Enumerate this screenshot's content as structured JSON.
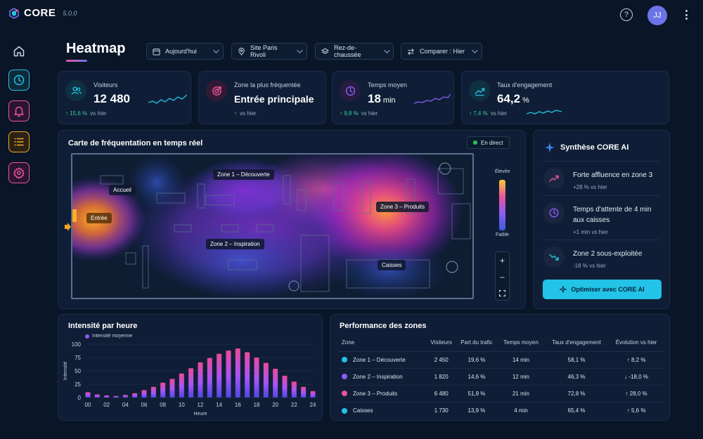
{
  "app": {
    "name": "CORE",
    "version": "5.0.0",
    "avatar_initials": "JJ"
  },
  "page": {
    "title": "Heatmap"
  },
  "filters": {
    "date": "Aujourd'hui",
    "site": "Site Paris Rivoli",
    "floor": "Rez-de-chaussée",
    "compare": "Comparer : Hier"
  },
  "kpis": [
    {
      "label": "Visiteurs",
      "value": "12 480",
      "unit": "",
      "delta": "15,6 %",
      "delta_suffix": "vs hier",
      "icon": "users-icon",
      "color": "#22c3e6"
    },
    {
      "label": "Zone la plus fréquentée",
      "value": "Entrée principale",
      "unit": "",
      "delta": "",
      "delta_suffix": "vs hier",
      "icon": "target-icon",
      "color": "#e8559a"
    },
    {
      "label": "Temps moyen",
      "value": "18",
      "unit": "min",
      "delta": "9,8 %",
      "delta_suffix": "vs hier",
      "icon": "clock-icon",
      "color": "#8b5cf6"
    },
    {
      "label": "Taux d'engagement",
      "value": "64,2",
      "unit": "%",
      "delta": "7,4 %",
      "delta_suffix": "vs hier",
      "icon": "trend-icon",
      "color": "#22c3e6"
    }
  ],
  "map": {
    "title": "Carte de fréquentation en temps réel",
    "live_label": "En direct",
    "zones": {
      "entrance": "Entrée",
      "reception": "Accueil",
      "zone1": "Zone 1 – Découverte",
      "zone2": "Zone 2 – Inspiration",
      "zone3": "Zone 3 – Produits",
      "checkout": "Caisses"
    },
    "legend_high": "Élevée",
    "legend_low": "Faible",
    "zoom_in": "+",
    "zoom_out": "−"
  },
  "ai": {
    "title": "Synthèse CORE AI",
    "items": [
      {
        "text": "Forte affluence en zone 3",
        "sub": "+28 % vs hier",
        "icon": "trend-up-icon",
        "color": "#e8559a"
      },
      {
        "text": "Temps d'attente de 4 min aux caisses",
        "sub": "+1 min vs hier",
        "icon": "clock-icon",
        "color": "#8b5cf6"
      },
      {
        "text": "Zone 2 sous-exploitée",
        "sub": "-18 % vs hier",
        "icon": "trend-down-icon",
        "color": "#22c3e6"
      }
    ],
    "button": "Optimiser avec CORE AI"
  },
  "hourly": {
    "title": "Intensité par heure",
    "legend": "Intensité moyenne"
  },
  "chart_data": {
    "type": "bar",
    "title": "Intensité par heure",
    "xlabel": "Heure",
    "ylabel": "Intensité",
    "ylim": [
      0,
      100
    ],
    "yticks": [
      0,
      25,
      50,
      75,
      100
    ],
    "xticks": [
      "00",
      "02",
      "04",
      "06",
      "08",
      "10",
      "12",
      "14",
      "16",
      "18",
      "20",
      "22",
      "24"
    ],
    "series": [
      {
        "name": "Intensité moyenne",
        "values": [
          10,
          6,
          4,
          3,
          5,
          8,
          14,
          20,
          28,
          35,
          45,
          55,
          66,
          74,
          82,
          88,
          92,
          85,
          75,
          65,
          54,
          41,
          30,
          20,
          12
        ]
      }
    ]
  },
  "performance": {
    "title": "Performance des zones",
    "columns": [
      "Zone",
      "Visiteurs",
      "Part du trafic",
      "Temps moyen",
      "Taux d'engagement",
      "Évolution vs hier"
    ],
    "rows": [
      {
        "zone": "Zone 1 – Découverte",
        "visitors": "2 450",
        "share": "19,6 %",
        "time": "14 min",
        "engagement": "58,1 %",
        "evolution": "8,2 %",
        "dir": "up",
        "color": "#22c3e6"
      },
      {
        "zone": "Zone 2 – Inspiration",
        "visitors": "1 820",
        "share": "14,6 %",
        "time": "12 min",
        "engagement": "46,3 %",
        "evolution": "-18,0 %",
        "dir": "down",
        "color": "#8b5cf6"
      },
      {
        "zone": "Zone 3 – Produits",
        "visitors": "6 480",
        "share": "51,9 %",
        "time": "21 min",
        "engagement": "72,8 %",
        "evolution": "28,0 %",
        "dir": "up",
        "color": "#e8559a"
      },
      {
        "zone": "Caisses",
        "visitors": "1 730",
        "share": "13,9 %",
        "time": "4 min",
        "engagement": "65,4 %",
        "evolution": "5,6 %",
        "dir": "up",
        "color": "#22c3e6"
      }
    ]
  }
}
